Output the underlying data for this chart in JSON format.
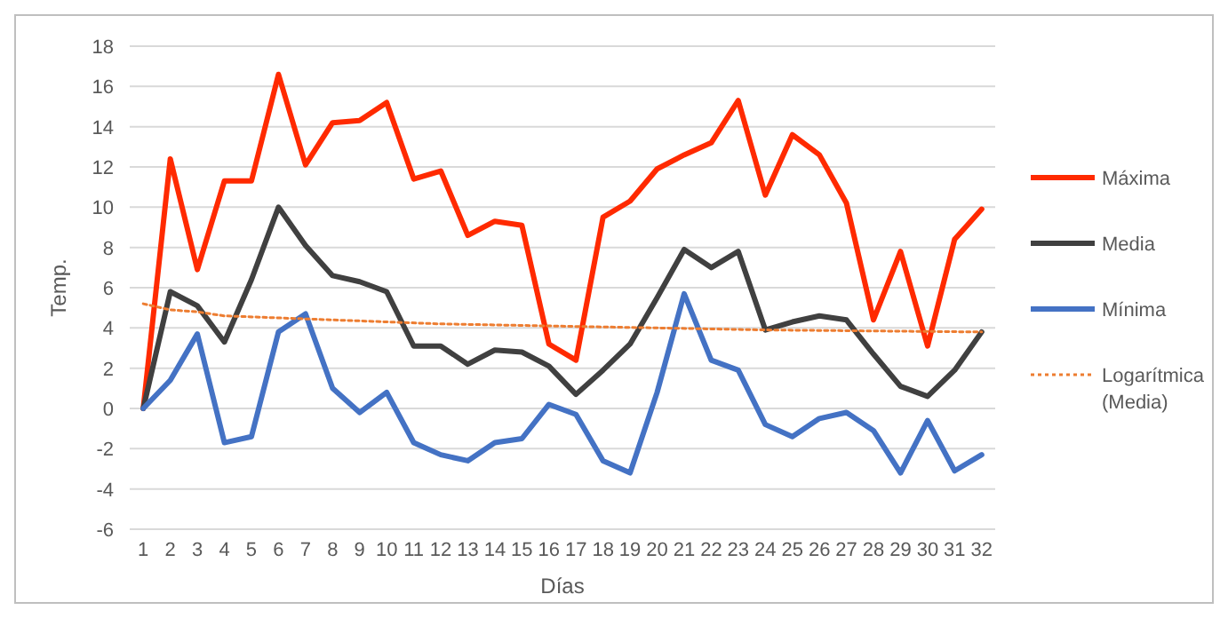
{
  "chart_data": {
    "type": "line",
    "xlabel": "Días",
    "ylabel": "Temp.",
    "x": [
      1,
      2,
      3,
      4,
      5,
      6,
      7,
      8,
      9,
      10,
      11,
      12,
      13,
      14,
      15,
      16,
      17,
      18,
      19,
      20,
      21,
      22,
      23,
      24,
      25,
      26,
      27,
      28,
      29,
      30,
      31,
      32
    ],
    "xlim": [
      0.5,
      32.5
    ],
    "xticks": [
      1,
      2,
      3,
      4,
      5,
      6,
      7,
      8,
      9,
      10,
      11,
      12,
      13,
      14,
      15,
      16,
      17,
      18,
      19,
      20,
      21,
      22,
      23,
      24,
      25,
      26,
      27,
      28,
      29,
      30,
      31,
      32
    ],
    "ylim": [
      -6,
      18
    ],
    "yticks": [
      -6,
      -4,
      -2,
      0,
      2,
      4,
      6,
      8,
      10,
      12,
      14,
      16,
      18
    ],
    "grid": "y",
    "legend": "right",
    "marker": "none",
    "series": [
      {
        "name": "Máxima",
        "color": "#ff2a00",
        "values": [
          0,
          12.4,
          6.9,
          11.3,
          11.3,
          16.6,
          12.1,
          14.2,
          14.3,
          15.2,
          11.4,
          11.8,
          8.6,
          9.3,
          9.1,
          3.2,
          2.4,
          9.5,
          10.3,
          11.9,
          12.6,
          13.2,
          15.3,
          10.6,
          13.6,
          12.6,
          10.2,
          4.4,
          7.8,
          3.1,
          8.4,
          9.9
        ]
      },
      {
        "name": "Media",
        "color": "#404040",
        "values": [
          0,
          5.8,
          5.1,
          3.3,
          6.4,
          10,
          8.1,
          6.6,
          6.3,
          5.8,
          3.1,
          3.1,
          2.2,
          2.9,
          2.8,
          2.1,
          0.7,
          1.9,
          3.2,
          5.5,
          7.9,
          7.0,
          7.8,
          3.9,
          4.3,
          4.6,
          4.4,
          2.7,
          1.1,
          0.6,
          1.9,
          3.8
        ]
      },
      {
        "name": "Mínima",
        "color": "#4472c4",
        "values": [
          0,
          1.4,
          3.7,
          -1.7,
          -1.4,
          3.8,
          4.7,
          1.0,
          -0.2,
          0.8,
          -1.7,
          -2.3,
          -2.6,
          -1.7,
          -1.5,
          0.2,
          -0.3,
          -2.6,
          -3.2,
          0.8,
          5.7,
          2.4,
          1.9,
          -0.8,
          -1.4,
          -0.5,
          -0.2,
          -1.1,
          -3.2,
          -0.6,
          -3.1,
          -2.3
        ]
      },
      {
        "name": "Logarítmica (Media)",
        "color": "#ed7d31",
        "line_style": "dotted",
        "x": [
          1,
          2,
          3,
          4,
          6,
          8,
          12,
          16,
          24,
          32
        ],
        "values": [
          5.2,
          4.9,
          4.8,
          4.6,
          4.5,
          4.4,
          4.2,
          4.1,
          3.9,
          3.8
        ]
      }
    ]
  }
}
